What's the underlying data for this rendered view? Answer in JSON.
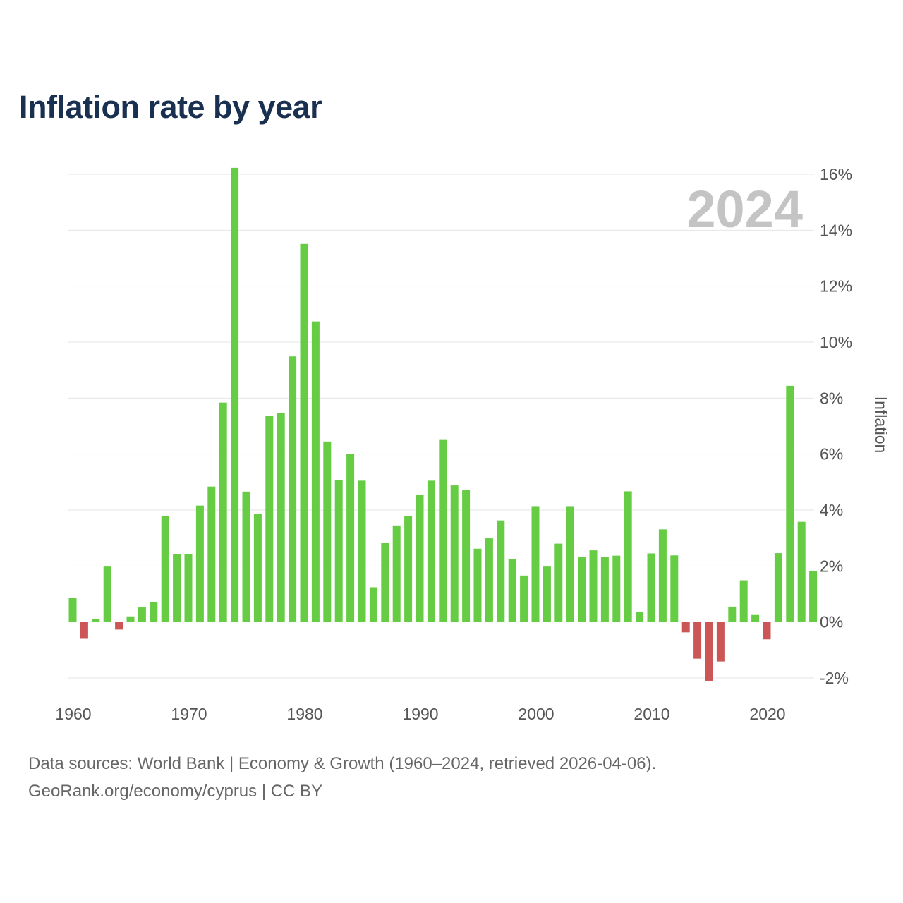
{
  "chart_data": {
    "type": "bar",
    "title": "Inflation rate by year",
    "year_label": "2024",
    "ylabel": "Inflation",
    "xlabel": "",
    "ylim": [
      -2,
      16
    ],
    "y_ticks": [
      -2,
      0,
      2,
      4,
      6,
      8,
      10,
      12,
      14,
      16
    ],
    "y_tick_labels": [
      "-2%",
      "0%",
      "2%",
      "4%",
      "6%",
      "8%",
      "10%",
      "12%",
      "14%",
      "16%"
    ],
    "x_ticks": [
      1960,
      1970,
      1980,
      1990,
      2000,
      2010,
      2020
    ],
    "x_tick_labels": [
      "1960",
      "1970",
      "1980",
      "1990",
      "2000",
      "2010",
      "2020"
    ],
    "grid": true,
    "legend": "none",
    "colors": {
      "positive": "#66cc44",
      "negative": "#cc5555",
      "title": "#1a3050",
      "watermark": "#c4c4c4"
    },
    "years": [
      1960,
      1961,
      1962,
      1963,
      1964,
      1965,
      1966,
      1967,
      1968,
      1969,
      1970,
      1971,
      1972,
      1973,
      1974,
      1975,
      1976,
      1977,
      1978,
      1979,
      1980,
      1981,
      1982,
      1983,
      1984,
      1985,
      1986,
      1987,
      1988,
      1989,
      1990,
      1991,
      1992,
      1993,
      1994,
      1995,
      1996,
      1997,
      1998,
      1999,
      2000,
      2001,
      2002,
      2003,
      2004,
      2005,
      2006,
      2007,
      2008,
      2009,
      2010,
      2011,
      2012,
      2013,
      2014,
      2015,
      2016,
      2017,
      2018,
      2019,
      2020,
      2021,
      2022,
      2023,
      2024
    ],
    "values": [
      0.85,
      -0.6,
      0.1,
      1.98,
      -0.27,
      0.2,
      0.52,
      0.71,
      3.79,
      2.42,
      2.43,
      4.16,
      4.84,
      7.84,
      16.23,
      4.66,
      3.87,
      7.36,
      7.47,
      9.49,
      13.51,
      10.74,
      6.45,
      5.06,
      6.01,
      5.05,
      1.24,
      2.82,
      3.45,
      3.78,
      4.53,
      5.05,
      6.53,
      4.88,
      4.71,
      2.62,
      2.99,
      3.63,
      2.25,
      1.66,
      4.14,
      1.98,
      2.8,
      4.14,
      2.32,
      2.56,
      2.32,
      2.37,
      4.67,
      0.35,
      2.45,
      3.31,
      2.38,
      -0.37,
      -1.31,
      -2.1,
      -1.41,
      0.55,
      1.49,
      0.25,
      -0.62,
      2.46,
      8.44,
      3.58,
      1.82
    ]
  },
  "source": {
    "line1": "Data sources: World Bank | Economy & Growth (1960–2024, retrieved 2026-04-06).",
    "line2": "GeoRank.org/economy/cyprus | CC BY"
  }
}
